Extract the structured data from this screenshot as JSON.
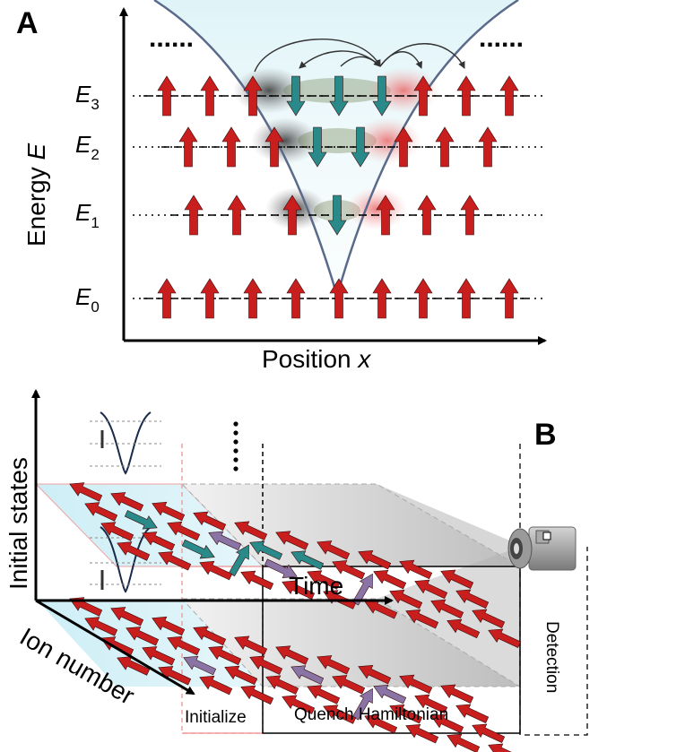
{
  "panel_a": {
    "label": "A",
    "y_axis_label": "Energy ",
    "y_axis_symbol": "E",
    "x_axis_label": "Position ",
    "x_axis_symbol": "x",
    "ellipsis_left": "......",
    "ellipsis_right": "......",
    "levels": [
      {
        "base": "E",
        "sub": "3"
      },
      {
        "base": "E",
        "sub": "2"
      },
      {
        "base": "E",
        "sub": "1"
      },
      {
        "base": "E",
        "sub": "0"
      }
    ]
  },
  "panel_b": {
    "label": "B",
    "y_axis_label": "Initial states",
    "time_label": "Time",
    "ion_axis_label": "Ion number",
    "initialize_label": "Initialize",
    "quench_label": "Quench Hamiltonian",
    "detection_label": "Detection"
  },
  "colors": {
    "spin_up": "#c81e1e",
    "spin_down": "#2a8a8a",
    "spin_purple": "#8a74a6",
    "well": "#5a6a8a",
    "initialize_text": "#1a1acc"
  }
}
